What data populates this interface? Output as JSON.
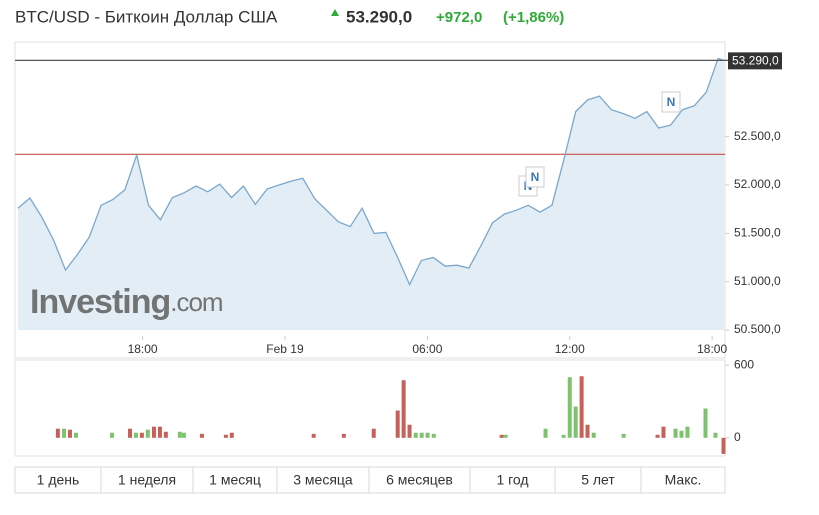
{
  "header": {
    "title": "BTC/USD - Биткоин Доллар США",
    "change": "+972,0",
    "change_pct": "(+1,86%)"
  },
  "watermark": {
    "brand": "Investing",
    "suffix": ".com"
  },
  "news_markers": [
    "N",
    "N",
    "N"
  ],
  "periods": [
    "1 день",
    "1 неделя",
    "1 месяц",
    "3 месяца",
    "6 месяцев",
    "1 год",
    "5 лет",
    "Макс."
  ],
  "chart_data": [
    {
      "type": "area",
      "color": "#7aa7cc",
      "fill": "#e3edf5",
      "x": [
        12.75,
        13.25,
        13.75,
        14.25,
        14.75,
        15.25,
        15.75,
        16.25,
        16.75,
        17.25,
        17.75,
        18.25,
        18.75,
        19.25,
        19.75,
        20.25,
        20.75,
        21.25,
        21.75,
        22.25,
        22.75,
        23.25,
        23.75,
        24.25,
        24.75,
        25.25,
        25.75,
        26.25,
        26.75,
        27.25,
        27.75,
        28.25,
        28.75,
        29.25,
        29.75,
        30.25,
        30.75,
        31.25,
        31.75,
        32.25,
        32.75,
        33.25,
        33.75,
        34.25,
        34.75,
        35.25,
        35.75,
        36.25,
        36.75,
        37.25,
        37.75,
        38.25,
        38.75,
        39.25,
        39.75,
        40.25,
        40.75,
        41.25,
        41.75,
        42.25,
        42.5
      ],
      "values": [
        51760,
        51866,
        51670,
        51430,
        51120,
        51280,
        51460,
        51790,
        51850,
        51950,
        52310,
        51790,
        51640,
        51870,
        51920,
        51990,
        51930,
        52010,
        51870,
        51990,
        51800,
        51960,
        52000,
        52040,
        52070,
        51860,
        51740,
        51620,
        51570,
        51760,
        51500,
        51510,
        51250,
        50970,
        51220,
        51250,
        51160,
        51170,
        51140,
        51370,
        51610,
        51700,
        51740,
        51790,
        51720,
        51790,
        52260,
        52760,
        52880,
        52920,
        52780,
        52740,
        52690,
        52760,
        52590,
        52620,
        52780,
        52820,
        52960,
        53310,
        53290
      ],
      "last": {
        "value": 53290,
        "label": "53.290,0"
      },
      "prev_close": 52318,
      "xlim": [
        12.75,
        42.5
      ],
      "xticks": [
        {
          "value": 18,
          "label": "18:00"
        },
        {
          "value": 24,
          "label": "Feb 19"
        },
        {
          "value": 30,
          "label": "06:00"
        },
        {
          "value": 36,
          "label": "12:00"
        },
        {
          "value": 42,
          "label": "18:00"
        }
      ],
      "ylim": [
        50500,
        53480
      ],
      "yticks": [
        {
          "value": 50500,
          "label": "50.500,0"
        },
        {
          "value": 51000,
          "label": "51.000,0"
        },
        {
          "value": 51500,
          "label": "51.500,0"
        },
        {
          "value": 52000,
          "label": "52.000,0"
        },
        {
          "value": 52500,
          "label": "52.500,0"
        }
      ]
    },
    {
      "type": "bar",
      "x": [
        14.43,
        14.69,
        14.94,
        15.19,
        16.71,
        17.47,
        17.72,
        17.97,
        18.22,
        18.48,
        18.73,
        18.98,
        19.57,
        19.74,
        20.5,
        21.51,
        21.76,
        25.21,
        26.48,
        27.74,
        28.75,
        29.0,
        29.25,
        29.51,
        29.76,
        30.01,
        30.27,
        33.13,
        33.3,
        34.98,
        35.74,
        36.0,
        36.25,
        36.5,
        36.75,
        37.01,
        38.27,
        39.7,
        39.95,
        40.46,
        40.71,
        40.96,
        41.72,
        42.14,
        42.48
      ],
      "values": [
        75,
        75,
        67,
        42,
        42,
        75,
        42,
        42,
        67,
        92,
        92,
        50,
        50,
        42,
        33,
        25,
        42,
        33,
        33,
        75,
        225,
        475,
        108,
        42,
        42,
        42,
        33,
        25,
        25,
        75,
        25,
        500,
        258,
        508,
        108,
        42,
        33,
        25,
        92,
        75,
        58,
        92,
        242,
        42,
        -133
      ],
      "colors": [
        "#c8605a",
        "#7dc36e",
        "#c8605a",
        "#7dc36e",
        "#7dc36e",
        "#c8605a",
        "#7dc36e",
        "#c8605a",
        "#7dc36e",
        "#c8605a",
        "#c8605a",
        "#c8605a",
        "#7dc36e",
        "#7dc36e",
        "#c8605a",
        "#c8605a",
        "#c8605a",
        "#c8605a",
        "#c8605a",
        "#c8605a",
        "#c8605a",
        "#c8605a",
        "#c8605a",
        "#7dc36e",
        "#7dc36e",
        "#7dc36e",
        "#7dc36e",
        "#c8605a",
        "#7dc36e",
        "#7dc36e",
        "#7dc36e",
        "#7dc36e",
        "#7dc36e",
        "#c8605a",
        "#c8605a",
        "#7dc36e",
        "#7dc36e",
        "#c8605a",
        "#c8605a",
        "#7dc36e",
        "#7dc36e",
        "#7dc36e",
        "#7dc36e",
        "#7dc36e",
        "#c8605a"
      ],
      "xlim": [
        12.75,
        42.5
      ],
      "ylim": [
        -150,
        642
      ],
      "yticks": [
        0,
        600
      ]
    }
  ]
}
